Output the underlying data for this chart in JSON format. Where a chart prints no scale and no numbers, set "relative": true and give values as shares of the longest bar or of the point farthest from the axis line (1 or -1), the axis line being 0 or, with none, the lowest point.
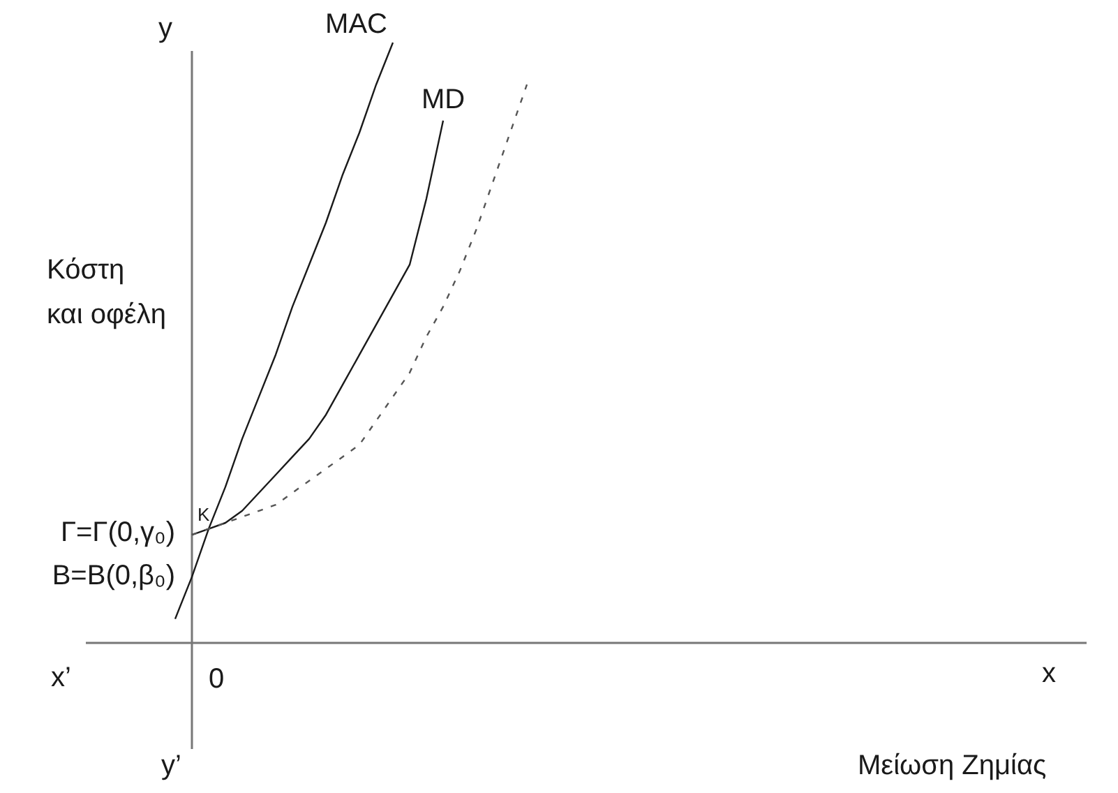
{
  "chart_data": {
    "type": "line",
    "relative": true,
    "ylabel": "Κόστη\nκαι οφέλη",
    "categories": [
      null,
      null,
      null,
      null,
      null,
      null,
      null,
      null,
      null,
      null,
      null,
      null,
      null,
      null,
      null,
      null,
      null,
      null,
      null,
      null,
      null,
      null
    ],
    "series": [
      {
        "name": "MAC",
        "color": "#1a1a1a",
        "line_style": "solid",
        "values": [
          0.04,
          0.11,
          0.19,
          0.26,
          0.34,
          0.41,
          0.48,
          0.56,
          0.63,
          0.7,
          0.78,
          0.85,
          0.93,
          1.0,
          null,
          null,
          null,
          null,
          null,
          null,
          null,
          null
        ]
      },
      {
        "name": "MD",
        "color": "#1a1a1a",
        "line_style": "solid",
        "values": [
          null,
          0.18,
          0.19,
          0.2,
          0.22,
          0.25,
          0.28,
          0.31,
          0.34,
          0.38,
          0.43,
          0.48,
          0.53,
          0.58,
          0.63,
          0.74,
          0.87,
          null,
          null,
          null,
          null,
          null
        ]
      },
      {
        "color": "#555555",
        "line_style": "dashed",
        "values": [
          null,
          0.18,
          0.19,
          0.2,
          0.21,
          0.22,
          0.23,
          0.25,
          0.27,
          0.29,
          0.31,
          0.33,
          0.37,
          0.41,
          0.45,
          0.51,
          0.56,
          0.62,
          0.69,
          0.77,
          0.85,
          0.93
        ]
      }
    ],
    "annotations": [
      "y",
      "x",
      "x’",
      "y’",
      "0",
      "Γ=Γ(0,γ₀)",
      "B=B(0,β₀)",
      "K",
      "Μείωση Ζημίας"
    ],
    "legend": false,
    "grid": false
  }
}
